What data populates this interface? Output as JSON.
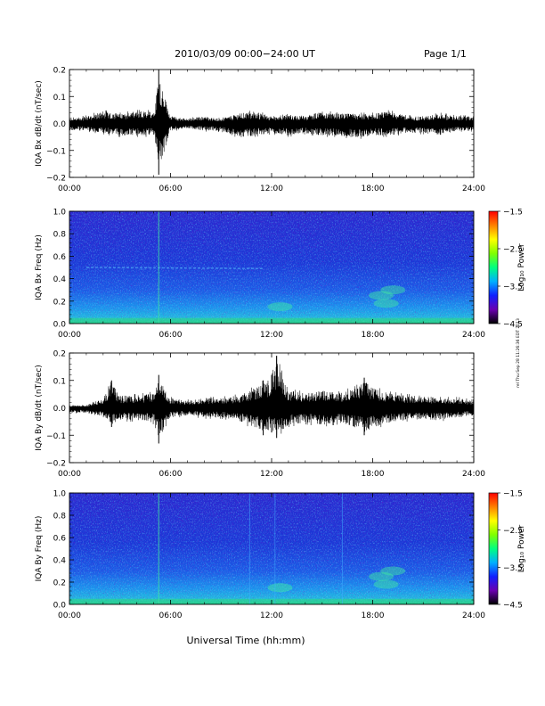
{
  "header": {
    "title": "2010/03/09  00:00−24:00 UT",
    "page": "Page 1/1"
  },
  "side_note": "rel Thu Sep 28 11:26:36 EDT 2013",
  "xlabel": "Universal Time (hh:mm)",
  "x_ticks": [
    "00:00",
    "06:00",
    "12:00",
    "18:00",
    "24:00"
  ],
  "colors": {
    "trace": "#000000",
    "spectrogram_background": "#1a2fd0",
    "colorbar_stops": [
      "#000000",
      "#6a00b0",
      "#1020ff",
      "#00b0ff",
      "#00ff80",
      "#80ff00",
      "#ffff00",
      "#ff8000",
      "#ff0000"
    ]
  },
  "chart_data": [
    {
      "type": "line",
      "ylabel": "IQA Bx dB/dt (nT/sec)",
      "xlim": [
        0,
        24
      ],
      "ylim": [
        -0.2,
        0.2
      ],
      "y_ticks": [
        "0.2",
        "0.1",
        "0.0",
        "−0.1",
        "−0.2"
      ],
      "x": [
        0,
        1,
        2,
        3,
        4,
        5,
        5.3,
        6,
        7,
        8,
        9,
        10,
        11,
        12,
        13,
        14,
        15,
        16,
        17,
        18,
        19,
        20,
        21,
        22,
        23,
        24
      ],
      "y_upper": [
        0.02,
        0.03,
        0.05,
        0.04,
        0.05,
        0.05,
        0.2,
        0.03,
        0.02,
        0.03,
        0.02,
        0.04,
        0.05,
        0.03,
        0.04,
        0.03,
        0.05,
        0.04,
        0.04,
        0.04,
        0.05,
        0.03,
        0.03,
        0.04,
        0.03,
        0.03
      ],
      "y_lower": [
        -0.03,
        -0.03,
        -0.04,
        -0.05,
        -0.05,
        -0.05,
        -0.19,
        -0.03,
        -0.02,
        -0.03,
        -0.03,
        -0.06,
        -0.05,
        -0.04,
        -0.05,
        -0.04,
        -0.05,
        -0.05,
        -0.06,
        -0.05,
        -0.05,
        -0.04,
        -0.04,
        -0.05,
        -0.03,
        -0.03
      ]
    },
    {
      "type": "heatmap",
      "ylabel": "IQA Bx Freq (Hz)",
      "xlim": [
        0,
        24
      ],
      "ylim": [
        0,
        1.0
      ],
      "y_ticks": [
        "1.0",
        "0.8",
        "0.6",
        "0.4",
        "0.2",
        "0.0"
      ],
      "colorbar_label": "Log₁₀ Power",
      "colorbar_ticks": [
        "−1.5",
        "−2.5",
        "−3.5",
        "−4.5"
      ],
      "clim": [
        -4.5,
        -1.5
      ]
    },
    {
      "type": "line",
      "ylabel": "IQA By dB/dt (nT/sec)",
      "xlim": [
        0,
        24
      ],
      "ylim": [
        -0.2,
        0.2
      ],
      "y_ticks": [
        "0.2",
        "0.1",
        "0.0",
        "−0.1",
        "−0.2"
      ],
      "x": [
        0,
        1,
        2,
        2.5,
        3,
        4,
        5,
        5.3,
        6,
        7,
        8,
        9,
        10,
        11,
        11.5,
        12,
        12.3,
        13,
        14,
        15,
        16,
        17,
        17.5,
        18,
        19,
        20,
        21,
        22,
        23,
        24
      ],
      "y_upper": [
        0.01,
        0.01,
        0.04,
        0.1,
        0.05,
        0.05,
        0.06,
        0.12,
        0.04,
        0.03,
        0.04,
        0.04,
        0.05,
        0.08,
        0.1,
        0.12,
        0.19,
        0.07,
        0.06,
        0.07,
        0.06,
        0.08,
        0.11,
        0.08,
        0.06,
        0.05,
        0.05,
        0.04,
        0.04,
        0.03
      ],
      "y_lower": [
        -0.02,
        -0.02,
        -0.04,
        -0.07,
        -0.05,
        -0.05,
        -0.06,
        -0.13,
        -0.04,
        -0.03,
        -0.04,
        -0.04,
        -0.05,
        -0.08,
        -0.1,
        -0.09,
        -0.11,
        -0.07,
        -0.06,
        -0.07,
        -0.06,
        -0.08,
        -0.1,
        -0.08,
        -0.06,
        -0.05,
        -0.05,
        -0.05,
        -0.04,
        -0.03
      ]
    },
    {
      "type": "heatmap",
      "ylabel": "IQA By Freq (Hz)",
      "xlim": [
        0,
        24
      ],
      "ylim": [
        0,
        1.0
      ],
      "y_ticks": [
        "1.0",
        "0.8",
        "0.6",
        "0.4",
        "0.2",
        "0.0"
      ],
      "colorbar_label": "Log₁₀ Power",
      "colorbar_ticks": [
        "−1.5",
        "−2.5",
        "−3.5",
        "−4.5"
      ],
      "clim": [
        -4.5,
        -1.5
      ]
    }
  ]
}
